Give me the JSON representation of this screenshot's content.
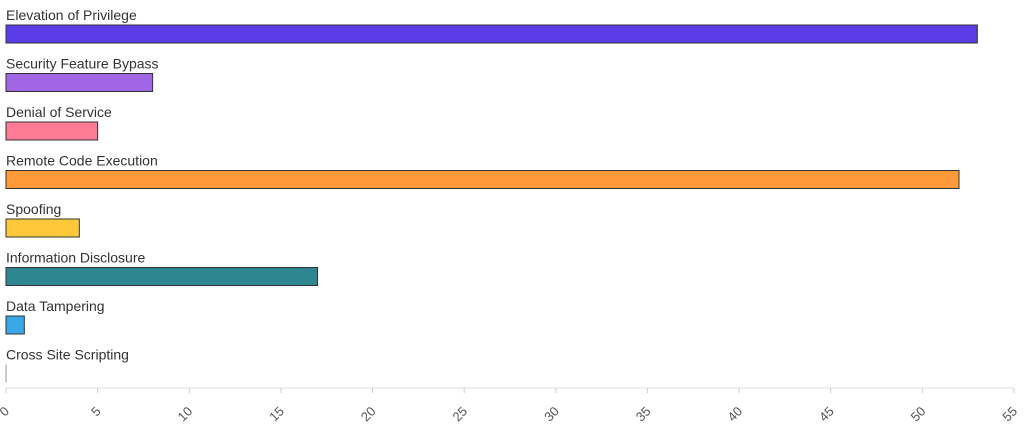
{
  "chart_data": {
    "type": "bar",
    "orientation": "horizontal",
    "categories": [
      "Elevation of Privilege",
      "Security Feature Bypass",
      "Denial of Service",
      "Remote Code Execution",
      "Spoofing",
      "Information Disclosure",
      "Data Tampering",
      "Cross Site Scripting"
    ],
    "values": [
      53,
      8,
      5,
      52,
      4,
      17,
      1,
      0
    ],
    "colors": [
      "#5b3ce9",
      "#a066e3",
      "#ff7b95",
      "#ff9a3a",
      "#ffc83a",
      "#2e8790",
      "#3aa7e6",
      "#999999"
    ],
    "xlim": [
      0,
      55
    ],
    "xticks": [
      0,
      5,
      10,
      15,
      20,
      25,
      30,
      35,
      40,
      45,
      50,
      55
    ]
  }
}
